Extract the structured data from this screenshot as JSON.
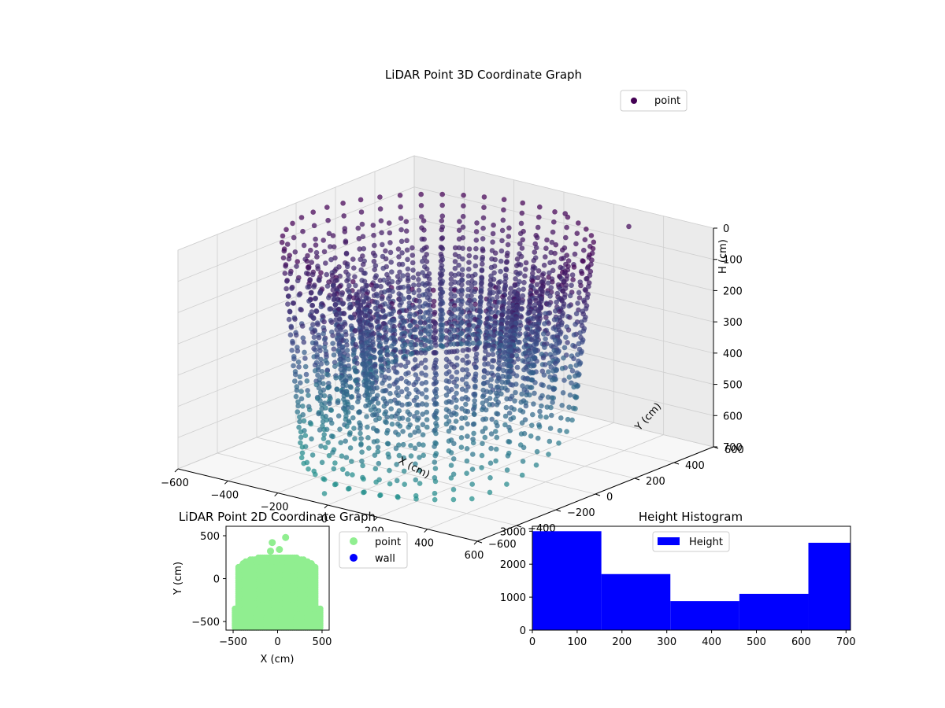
{
  "chart_data": [
    {
      "type": "scatter3d",
      "title": "LiDAR Point 3D Coordinate Graph",
      "xlabel": "X (cm)",
      "ylabel": "Y (cm)",
      "zlabel": "H (cm)",
      "xlim": [
        -600,
        600
      ],
      "ylim": [
        -600,
        600
      ],
      "zlim": [
        700,
        0
      ],
      "xticks": [
        -600,
        -400,
        -200,
        0,
        200,
        400,
        600
      ],
      "yticks": [
        -600,
        -400,
        -200,
        0,
        200,
        400,
        600
      ],
      "zticks": [
        0,
        100,
        200,
        300,
        400,
        500,
        600,
        700
      ],
      "legend": {
        "entries": [
          "point"
        ],
        "placement": "top-right"
      },
      "colormap": [
        "#440154",
        "#3b528b",
        "#21918c"
      ],
      "grid": true,
      "shape": {
        "rings": [
          {
            "radius": 500,
            "h_range": [
              0,
              680
            ]
          },
          {
            "radius": 420,
            "h_range": [
              60,
              620
            ]
          },
          {
            "radius": 340,
            "h_range": [
              120,
              560
            ]
          },
          {
            "radius": 260,
            "h_range": [
              180,
              500
            ]
          }
        ],
        "outliers": [
          {
            "x": 100,
            "y": 480,
            "h": 20
          },
          {
            "x": 300,
            "y": 550,
            "h": 40
          },
          {
            "x": -60,
            "y": -540,
            "h": 690
          }
        ]
      }
    },
    {
      "type": "scatter",
      "title": "LiDAR Point 2D Coordinate Graph",
      "xlabel": "X (cm)",
      "ylabel": "Y (cm)",
      "xlim": [
        -580,
        580
      ],
      "ylim": [
        -600,
        610
      ],
      "xticks": [
        -500,
        0,
        500
      ],
      "yticks": [
        -500,
        0,
        500
      ],
      "legend": {
        "entries": [
          {
            "name": "point",
            "color": "#90ee90"
          },
          {
            "name": "wall",
            "color": "#0000ff"
          }
        ],
        "placement": "right-outside"
      },
      "outliers": [
        {
          "x": 90,
          "y": 480
        },
        {
          "x": -60,
          "y": 420
        },
        {
          "x": 20,
          "y": 340
        },
        {
          "x": -80,
          "y": 320
        }
      ]
    },
    {
      "type": "bar",
      "title": "Height Histogram",
      "legend": {
        "entries": [
          "Height"
        ],
        "placement": "top-center"
      },
      "xlim": [
        0,
        710
      ],
      "ylim": [
        0,
        3150
      ],
      "xticks": [
        0,
        100,
        200,
        300,
        400,
        500,
        600,
        700
      ],
      "yticks": [
        0,
        1000,
        2000,
        3000
      ],
      "bins": [
        {
          "start": 0,
          "end": 154,
          "count": 3000
        },
        {
          "start": 154,
          "end": 308,
          "count": 1700
        },
        {
          "start": 308,
          "end": 462,
          "count": 880
        },
        {
          "start": 462,
          "end": 616,
          "count": 1100
        },
        {
          "start": 616,
          "end": 710,
          "count": 2650
        }
      ],
      "color": "#0000ff"
    }
  ]
}
